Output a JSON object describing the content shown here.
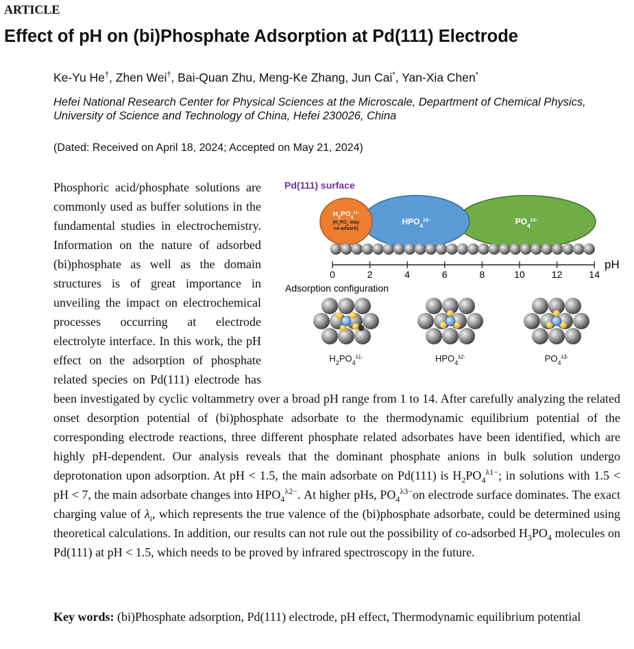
{
  "header": {
    "section": "ARTICLE",
    "title": "Effect of pH on (bi)Phosphate Adsorption at Pd(111) Electrode",
    "authors": [
      {
        "t": "Ke-Yu He"
      },
      {
        "sup": "†"
      },
      {
        "t": ", Zhen Wei"
      },
      {
        "sup": "†"
      },
      {
        "t": ", Bai-Quan Zhu, Meng-Ke Zhang, Jun Cai"
      },
      {
        "sup": "*"
      },
      {
        "t": ", Yan-Xia Chen"
      },
      {
        "sup": "*"
      }
    ],
    "affiliation": "Hefei National Research Center for Physical Sciences at the Microscale, Department of Chemical Physics, University of Science and Technology of China, Hefei 230026, China",
    "dated": "(Dated: Received on April 18, 2024; Accepted on May 21, 2024)"
  },
  "figure": {
    "title": "Pd(111) surface",
    "species": [
      {
        "label": [
          {
            "t": "H"
          },
          {
            "sub": "2"
          },
          {
            "t": "PO"
          },
          {
            "sub": "4"
          },
          {
            "sup": "λ1-"
          }
        ],
        "note": [
          [
            {
              "t": "(H"
            },
            {
              "sub": "2"
            },
            {
              "t": "PO"
            },
            {
              "sub": "4"
            },
            {
              "t": " may"
            }
          ],
          [
            {
              "t": "co-adsorb)"
            }
          ]
        ]
      },
      {
        "label": [
          {
            "t": "HPO"
          },
          {
            "sub": "4"
          },
          {
            "sup": "λ2-"
          }
        ]
      },
      {
        "label": [
          {
            "t": "PO"
          },
          {
            "sub": "4"
          },
          {
            "sup": "λ3-"
          }
        ]
      }
    ],
    "axis": {
      "ticks": [
        0,
        2,
        4,
        6,
        8,
        10,
        12,
        14
      ],
      "label": "pH"
    },
    "subtitle": "Adsorption configuration",
    "configurations": [
      [
        {
          "t": "H"
        },
        {
          "sub": "2"
        },
        {
          "t": "PO"
        },
        {
          "sub": "4"
        },
        {
          "sup": "λ1-"
        }
      ],
      [
        {
          "t": "HPO"
        },
        {
          "sub": "4"
        },
        {
          "sup": "λ2-"
        }
      ],
      [
        {
          "t": "PO"
        },
        {
          "sub": "4"
        },
        {
          "sup": "λ3-"
        }
      ]
    ]
  },
  "abstract": [
    {
      "t": "Phosphoric acid/phosphate solutions are commonly used as buffer solutions in the fundamental studies in electrochemistry. Information on the nature of adsorbed (bi)phosphate as well as the domain structures is of great importance in unveiling the impact on electrochemical processes occurring at electrode electrolyte interface. In this work, the pH effect on the adsorption of phosphate related species on Pd(111) electrode has been investigated by cyclic voltammetry over a broad pH range from 1 to 14. After carefully analyzing the related onset desorption potential of (bi)phosphate adsorbate to the thermodynamic equilibrium potential of the corresponding electrode reactions, three different phosphate related adsorbates have been identified, which are highly pH-dependent. Our analysis reveals that the dominant phosphate anions in bulk solution undergo deprotonation upon adsorption. At pH < 1.5, the main adsorbate on Pd(111) is H"
    },
    {
      "sub": "2"
    },
    {
      "t": "PO"
    },
    {
      "sub": "4"
    },
    {
      "sup": "λ1−"
    },
    {
      "t": "; in solutions with 1.5 < pH < 7, the main adsorbate changes into HPO"
    },
    {
      "sub": "4"
    },
    {
      "sup": "λ2−"
    },
    {
      "t": ". At higher pHs, PO"
    },
    {
      "sub": "4"
    },
    {
      "sup": "λ3−"
    },
    {
      "t": "on electrode surface dominates. The exact charging value of "
    },
    {
      "i": "λ"
    },
    {
      "sub": "i"
    },
    {
      "t": ", which represents the true valence of the (bi)phosphate adsorbate, could be determined using theoretical calculations. In addition, our results can not rule out the possibility of co-adsorbed H"
    },
    {
      "sub": "3"
    },
    {
      "t": "PO"
    },
    {
      "sub": "4"
    },
    {
      "t": " molecules on Pd(111) at pH < 1.5, which needs to be proved by infrared spectroscopy in the future."
    }
  ],
  "keywords": {
    "label": "Key words:",
    "text": "(bi)Phosphate adsorption, Pd(111) electrode, pH effect, Thermodynamic equilibrium potential"
  }
}
